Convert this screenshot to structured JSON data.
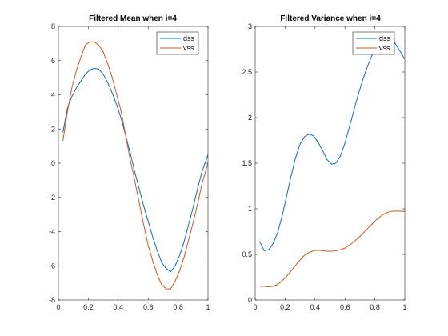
{
  "chart_data": [
    {
      "type": "line",
      "title": "Filtered Mean when i=4",
      "xlabel": "",
      "ylabel": "",
      "xlim": [
        0,
        1
      ],
      "ylim": [
        -8,
        8
      ],
      "xticks": [
        0,
        0.2,
        0.4,
        0.6,
        0.8,
        1
      ],
      "xtick_labels": [
        "0",
        "0.2",
        "0.4",
        "0.6",
        "0.8",
        "1"
      ],
      "yticks": [
        -8,
        -6,
        -4,
        -2,
        0,
        2,
        4,
        6,
        8
      ],
      "ytick_labels": [
        "-8",
        "-6",
        "-4",
        "-2",
        "0",
        "2",
        "4",
        "6",
        "8"
      ],
      "grid": false,
      "legend_position": "top-right",
      "series": [
        {
          "name": "dss",
          "color": "#0072BD",
          "x": [
            0.03,
            0.06,
            0.09,
            0.12,
            0.15,
            0.18,
            0.21,
            0.24,
            0.27,
            0.3,
            0.33,
            0.36,
            0.39,
            0.42,
            0.45,
            0.48,
            0.51,
            0.54,
            0.57,
            0.6,
            0.63,
            0.66,
            0.69,
            0.72,
            0.75,
            0.78,
            0.81,
            0.84,
            0.87,
            0.9,
            0.93,
            0.96,
            1.0
          ],
          "y": [
            1.8,
            3.2,
            3.9,
            4.4,
            4.8,
            5.2,
            5.45,
            5.55,
            5.5,
            5.2,
            4.7,
            4.1,
            3.4,
            2.6,
            1.6,
            0.6,
            -0.5,
            -1.5,
            -2.5,
            -3.4,
            -4.3,
            -5.1,
            -5.8,
            -6.15,
            -6.35,
            -6.0,
            -5.4,
            -4.6,
            -3.6,
            -2.6,
            -1.5,
            -0.5,
            0.5
          ]
        },
        {
          "name": "vss",
          "color": "#D95319",
          "x": [
            0.03,
            0.06,
            0.09,
            0.12,
            0.15,
            0.18,
            0.21,
            0.24,
            0.27,
            0.3,
            0.33,
            0.36,
            0.39,
            0.42,
            0.45,
            0.48,
            0.51,
            0.54,
            0.57,
            0.6,
            0.63,
            0.66,
            0.69,
            0.72,
            0.75,
            0.78,
            0.81,
            0.84,
            0.87,
            0.9,
            0.93,
            0.96,
            1.0
          ],
          "y": [
            1.3,
            3.0,
            4.4,
            5.4,
            6.2,
            6.9,
            7.1,
            7.1,
            6.9,
            6.5,
            5.8,
            5.0,
            4.0,
            3.0,
            1.6,
            0.2,
            -1.0,
            -2.3,
            -3.6,
            -4.8,
            -5.7,
            -6.5,
            -7.1,
            -7.35,
            -7.35,
            -6.9,
            -6.3,
            -5.5,
            -4.5,
            -3.5,
            -2.4,
            -1.2,
            0.0
          ]
        }
      ]
    },
    {
      "type": "line",
      "title": "Filtered Variance when i=4",
      "xlabel": "",
      "ylabel": "",
      "xlim": [
        0,
        1
      ],
      "ylim": [
        0,
        3
      ],
      "xticks": [
        0,
        0.2,
        0.4,
        0.6,
        0.8,
        1
      ],
      "xtick_labels": [
        "0",
        "0.2",
        "0.4",
        "0.6",
        "0.8",
        "1"
      ],
      "yticks": [
        0,
        0.5,
        1,
        1.5,
        2,
        2.5,
        3
      ],
      "ytick_labels": [
        "0",
        "0.5",
        "1",
        "1.5",
        "2",
        "2.5",
        "3"
      ],
      "grid": false,
      "legend_position": "top-right",
      "series": [
        {
          "name": "dss",
          "color": "#0072BD",
          "x": [
            0.03,
            0.06,
            0.09,
            0.12,
            0.15,
            0.18,
            0.21,
            0.24,
            0.27,
            0.3,
            0.33,
            0.36,
            0.39,
            0.42,
            0.45,
            0.48,
            0.51,
            0.54,
            0.57,
            0.6,
            0.63,
            0.66,
            0.69,
            0.72,
            0.75,
            0.78,
            0.81,
            0.84,
            0.87,
            0.9,
            0.93,
            0.96,
            1.0
          ],
          "y": [
            0.64,
            0.54,
            0.55,
            0.62,
            0.74,
            0.92,
            1.14,
            1.36,
            1.56,
            1.71,
            1.79,
            1.82,
            1.8,
            1.73,
            1.64,
            1.54,
            1.49,
            1.5,
            1.58,
            1.72,
            1.9,
            2.08,
            2.26,
            2.42,
            2.56,
            2.68,
            2.78,
            2.84,
            2.88,
            2.88,
            2.83,
            2.75,
            2.64
          ]
        },
        {
          "name": "vss",
          "color": "#D95319",
          "x": [
            0.03,
            0.06,
            0.09,
            0.12,
            0.15,
            0.18,
            0.21,
            0.24,
            0.27,
            0.3,
            0.33,
            0.36,
            0.39,
            0.42,
            0.45,
            0.48,
            0.51,
            0.54,
            0.57,
            0.6,
            0.63,
            0.66,
            0.69,
            0.72,
            0.75,
            0.78,
            0.81,
            0.84,
            0.87,
            0.9,
            0.93,
            0.96,
            1.0
          ],
          "y": [
            0.15,
            0.15,
            0.145,
            0.15,
            0.17,
            0.21,
            0.26,
            0.32,
            0.38,
            0.44,
            0.49,
            0.52,
            0.54,
            0.545,
            0.54,
            0.535,
            0.535,
            0.54,
            0.55,
            0.57,
            0.6,
            0.64,
            0.68,
            0.73,
            0.78,
            0.83,
            0.88,
            0.92,
            0.95,
            0.97,
            0.975,
            0.975,
            0.97
          ]
        }
      ]
    }
  ]
}
